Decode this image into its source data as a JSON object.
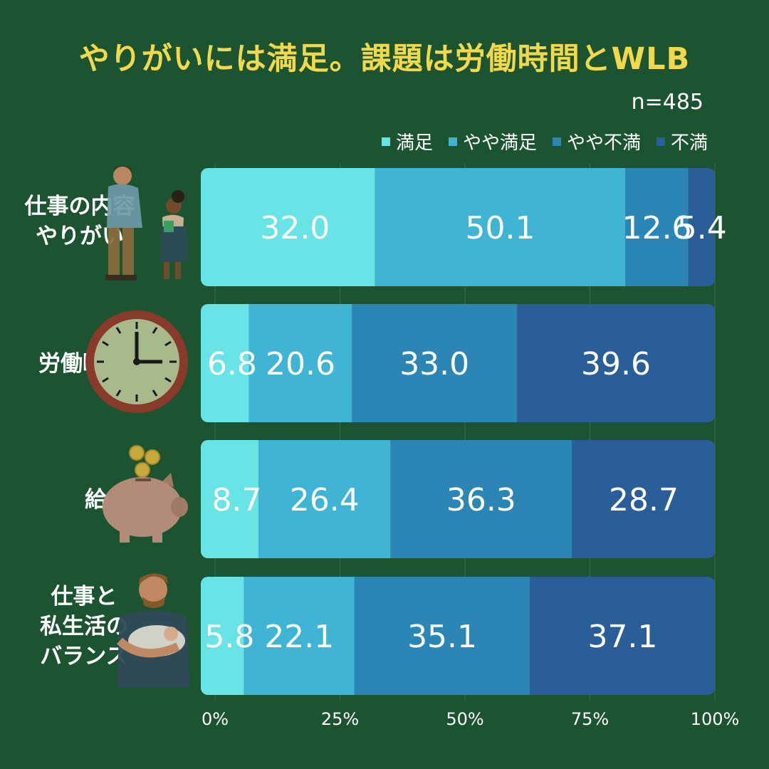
{
  "title": "やりがいには満足。課題は労働時間とWLB",
  "sample_size": "n=485",
  "chart_data": {
    "type": "bar",
    "orientation": "horizontal-stacked-100",
    "categories": [
      "仕事の内容\nやりがい",
      "労働時間",
      "給与",
      "仕事と\n私生活の\nバランス"
    ],
    "series": [
      {
        "name": "満足",
        "color": "#68e3e6",
        "values": [
          32.0,
          6.8,
          8.7,
          5.8
        ]
      },
      {
        "name": "やや満足",
        "color": "#3fb4d4",
        "values": [
          50.1,
          20.6,
          26.4,
          22.1
        ]
      },
      {
        "name": "やや不満",
        "color": "#2b86b6",
        "values": [
          12.6,
          33.0,
          36.3,
          35.1
        ]
      },
      {
        "name": "不満",
        "color": "#2a5e98",
        "values": [
          5.4,
          39.6,
          28.7,
          37.1
        ]
      }
    ],
    "xlim": [
      0,
      100
    ],
    "xticks": [
      "0%",
      "25%",
      "50%",
      "75%",
      "100%"
    ],
    "legend_position": "top-right",
    "grid": true
  },
  "colors": {
    "background": "#1c5432",
    "title": "#f2d84b"
  },
  "icons": [
    "parent-child-illustration",
    "clock-icon",
    "piggy-bank-icon",
    "father-baby-illustration"
  ]
}
